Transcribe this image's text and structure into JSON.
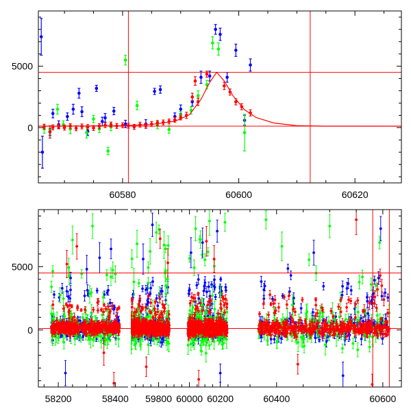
{
  "chart_data": [
    {
      "type": "scatter",
      "xlim": [
        60565.5,
        60628
      ],
      "ylim": [
        -4500,
        9500
      ],
      "x_ticks": [
        "60580",
        "60600",
        "60620"
      ],
      "y_ticks": [
        "0",
        "5000"
      ],
      "hlines": [
        4500,
        120
      ],
      "vlines": [
        60581,
        60612.3
      ],
      "model_curve": {
        "color": "#ff0000",
        "points": [
          [
            60565.5,
            120
          ],
          [
            60580,
            150
          ],
          [
            60585,
            260
          ],
          [
            60589,
            520
          ],
          [
            60591.5,
            1050
          ],
          [
            60593.5,
            2300
          ],
          [
            60595,
            3700
          ],
          [
            60596.2,
            4500
          ],
          [
            60597.5,
            3800
          ],
          [
            60599,
            2600
          ],
          [
            60601,
            1450
          ],
          [
            60603,
            820
          ],
          [
            60606,
            380
          ],
          [
            60610,
            160
          ],
          [
            60615,
            122
          ],
          [
            60628,
            120
          ]
        ]
      },
      "series": [
        {
          "color": "#0000ff",
          "points": [
            [
              60566,
              7400,
              1500
            ],
            [
              60566.2,
              -2000,
              1300
            ],
            [
              60567.5,
              -350,
              300
            ],
            [
              60568,
              1150,
              350
            ],
            [
              60569,
              250,
              300
            ],
            [
              60570.5,
              900,
              300
            ],
            [
              60571.5,
              1500,
              400
            ],
            [
              60572.5,
              2800,
              400
            ],
            [
              60573,
              1300,
              400
            ],
            [
              60574,
              -300,
              350
            ],
            [
              60575.5,
              3200,
              250
            ],
            [
              60576.5,
              500,
              350
            ],
            [
              60577,
              800,
              350
            ],
            [
              60578.5,
              1350,
              300
            ],
            [
              60580.5,
              300,
              300
            ],
            [
              60584,
              300,
              350
            ],
            [
              60585.5,
              2950,
              250
            ],
            [
              60586.5,
              3100,
              300
            ],
            [
              60589,
              900,
              300
            ],
            [
              60590,
              1500,
              350
            ],
            [
              60592,
              2100,
              350
            ],
            [
              60593.5,
              4100,
              500
            ],
            [
              60595,
              4200,
              400
            ],
            [
              60596,
              8000,
              400
            ],
            [
              60596.8,
              7600,
              500
            ],
            [
              60598,
              4100,
              400
            ],
            [
              60599.5,
              6300,
              500
            ],
            [
              60601,
              600,
              400
            ],
            [
              60602,
              5100,
              500
            ]
          ]
        },
        {
          "color": "#00ff00",
          "points": [
            [
              60566.5,
              -100,
              350
            ],
            [
              60567.5,
              -200,
              350
            ],
            [
              60568.8,
              1500,
              400
            ],
            [
              60569.8,
              250,
              300
            ],
            [
              60571,
              -100,
              400
            ],
            [
              60573.8,
              -400,
              450
            ],
            [
              60575,
              700,
              300
            ],
            [
              60576,
              -100,
              300
            ],
            [
              60577.5,
              -1900,
              300
            ],
            [
              60578,
              50,
              300
            ],
            [
              60580.5,
              5500,
              400
            ],
            [
              60582.5,
              1800,
              350
            ],
            [
              60586,
              200,
              300
            ],
            [
              60588,
              -150,
              300
            ],
            [
              60590,
              1000,
              300
            ],
            [
              60591.8,
              1400,
              300
            ],
            [
              60593,
              2600,
              400
            ],
            [
              60594.5,
              3500,
              350
            ],
            [
              60595.5,
              6900,
              500
            ],
            [
              60596.5,
              6400,
              500
            ],
            [
              60601,
              -400,
              1500
            ]
          ]
        },
        {
          "color": "#ff0000",
          "points": [
            [
              60566.5,
              80,
              200
            ],
            [
              60567.5,
              -350,
              500
            ],
            [
              60568,
              20,
              200
            ],
            [
              60569,
              100,
              200
            ],
            [
              60570,
              0,
              200
            ],
            [
              60571,
              120,
              200
            ],
            [
              60572,
              -50,
              200
            ],
            [
              60573,
              100,
              200
            ],
            [
              60574,
              60,
              200
            ],
            [
              60575,
              -30,
              200
            ],
            [
              60576,
              120,
              200
            ],
            [
              60577,
              200,
              200
            ],
            [
              60578,
              250,
              200
            ],
            [
              60579,
              140,
              200
            ],
            [
              60580,
              190,
              200
            ],
            [
              60581,
              160,
              200
            ],
            [
              60582,
              60,
              200
            ],
            [
              60583,
              240,
              200
            ],
            [
              60584,
              160,
              200
            ],
            [
              60585,
              300,
              200
            ],
            [
              60586,
              380,
              200
            ],
            [
              60587,
              420,
              200
            ],
            [
              60588,
              500,
              200
            ],
            [
              60589,
              640,
              200
            ],
            [
              60590,
              830,
              200
            ],
            [
              60591,
              1000,
              250
            ],
            [
              60592,
              2500,
              300
            ],
            [
              60592.5,
              3800,
              350
            ],
            [
              60593,
              2100,
              300
            ],
            [
              60594.5,
              4350,
              250
            ],
            [
              60597.5,
              3400,
              300
            ],
            [
              60598.5,
              2900,
              250
            ],
            [
              60599.5,
              2100,
              250
            ],
            [
              60600.5,
              1700,
              250
            ],
            [
              60602,
              1200,
              250
            ]
          ]
        }
      ]
    },
    {
      "type": "scatter",
      "x_breaks": [
        [
          58130,
          58445
        ],
        [
          59620,
          60255
        ],
        [
          60310,
          60635
        ]
      ],
      "ylim": [
        -4500,
        9500
      ],
      "x_ticks": [
        "58200",
        "58400",
        "59800",
        "60000",
        "60200",
        "60400",
        "60600"
      ],
      "y_ticks": [
        "0",
        "5000"
      ],
      "hlines": [
        4500,
        120
      ],
      "vlines": [
        60581,
        60612.3
      ],
      "noise_colors": [
        "#0000ff",
        "#00ff00",
        "#ff0000"
      ],
      "dense_series": [
        {
          "range": [
            58175,
            58415
          ],
          "color": "#0000ff",
          "n": 160,
          "spread": 850,
          "err": 300
        },
        {
          "range": [
            58175,
            58415
          ],
          "color": "#00ff00",
          "n": 110,
          "spread": 1300,
          "err": 500
        },
        {
          "range": [
            58175,
            58415
          ],
          "color": "#ff0000",
          "n": 320,
          "spread": 500,
          "err": 220
        },
        {
          "range": [
            59620,
            59870
          ],
          "color": "#0000ff",
          "n": 180,
          "spread": 950,
          "err": 320
        },
        {
          "range": [
            59620,
            59870
          ],
          "color": "#00ff00",
          "n": 110,
          "spread": 1500,
          "err": 550
        },
        {
          "range": [
            59620,
            59870
          ],
          "color": "#ff0000",
          "n": 340,
          "spread": 550,
          "err": 230
        },
        {
          "range": [
            59990,
            60245
          ],
          "color": "#0000ff",
          "n": 190,
          "spread": 1000,
          "err": 330
        },
        {
          "range": [
            59990,
            60245
          ],
          "color": "#00ff00",
          "n": 120,
          "spread": 1600,
          "err": 560
        },
        {
          "range": [
            59990,
            60245
          ],
          "color": "#ff0000",
          "n": 360,
          "spread": 600,
          "err": 240
        },
        {
          "range": [
            60365,
            60612
          ],
          "color": "#0000ff",
          "n": 180,
          "spread": 1000,
          "err": 330
        },
        {
          "range": [
            60365,
            60612
          ],
          "color": "#00ff00",
          "n": 110,
          "spread": 1600,
          "err": 560
        },
        {
          "range": [
            60365,
            60612
          ],
          "color": "#ff0000",
          "n": 340,
          "spread": 600,
          "err": 240
        }
      ],
      "outliers": [
        [
          58225,
          -3400,
          "#0000ff"
        ],
        [
          58230,
          5200,
          "#ff0000"
        ],
        [
          58250,
          7100,
          "#00ff00"
        ],
        [
          58265,
          6600,
          "#ff0000"
        ],
        [
          58300,
          4800,
          "#0000ff"
        ],
        [
          58320,
          8200,
          "#00ff00"
        ],
        [
          58345,
          5700,
          "#0000ff"
        ],
        [
          58360,
          -1800,
          "#ff0000"
        ],
        [
          58385,
          6400,
          "#0000ff"
        ],
        [
          58395,
          -4200,
          "#ff0000"
        ],
        [
          59640,
          3800,
          "#00ff00"
        ],
        [
          59660,
          6800,
          "#00ff00"
        ],
        [
          59700,
          5600,
          "#0000ff"
        ],
        [
          59720,
          -2900,
          "#ff0000"
        ],
        [
          59745,
          6200,
          "#00ff00"
        ],
        [
          59760,
          8300,
          "#0000ff"
        ],
        [
          59785,
          7700,
          "#00ff00"
        ],
        [
          59810,
          7200,
          "#ff0000"
        ],
        [
          59835,
          6700,
          "#00ff00"
        ],
        [
          59860,
          5300,
          "#ff0000"
        ],
        [
          60010,
          6100,
          "#0000ff"
        ],
        [
          60040,
          8000,
          "#00ff00"
        ],
        [
          60060,
          -3900,
          "#ff0000"
        ],
        [
          60085,
          6900,
          "#0000ff"
        ],
        [
          60110,
          7000,
          "#ff0000"
        ],
        [
          60130,
          8600,
          "#00ff00"
        ],
        [
          60160,
          5600,
          "#ff0000"
        ],
        [
          60180,
          7800,
          "#0000ff"
        ],
        [
          60200,
          -3400,
          "#0000ff"
        ],
        [
          60230,
          8500,
          "#00ff00"
        ],
        [
          60380,
          8700,
          "#00ff00"
        ],
        [
          60410,
          6600,
          "#00ff00"
        ],
        [
          60440,
          -2700,
          "#ff0000"
        ],
        [
          60470,
          6100,
          "#0000ff"
        ],
        [
          60500,
          8200,
          "#00ff00"
        ],
        [
          60525,
          -3600,
          "#0000ff"
        ],
        [
          60550,
          8700,
          "#ff0000"
        ],
        [
          60580,
          -4300,
          "#ff0000"
        ],
        [
          60596,
          8000,
          "#0000ff"
        ]
      ],
      "rise_points": [
        [
          60565,
          1500,
          "#ff0000"
        ],
        [
          60575,
          2100,
          "#ff0000"
        ],
        [
          60585,
          2600,
          "#ff0000"
        ],
        [
          60590,
          3200,
          "#ff0000"
        ],
        [
          60595,
          4300,
          "#ff0000"
        ],
        [
          60598,
          3500,
          "#ff0000"
        ],
        [
          60602,
          2400,
          "#ff0000"
        ],
        [
          60572,
          1300,
          "#0000ff"
        ],
        [
          60582,
          2900,
          "#0000ff"
        ],
        [
          60592,
          4100,
          "#0000ff"
        ],
        [
          60578,
          3600,
          "#00ff00"
        ],
        [
          60594,
          6900,
          "#00ff00"
        ]
      ]
    }
  ]
}
